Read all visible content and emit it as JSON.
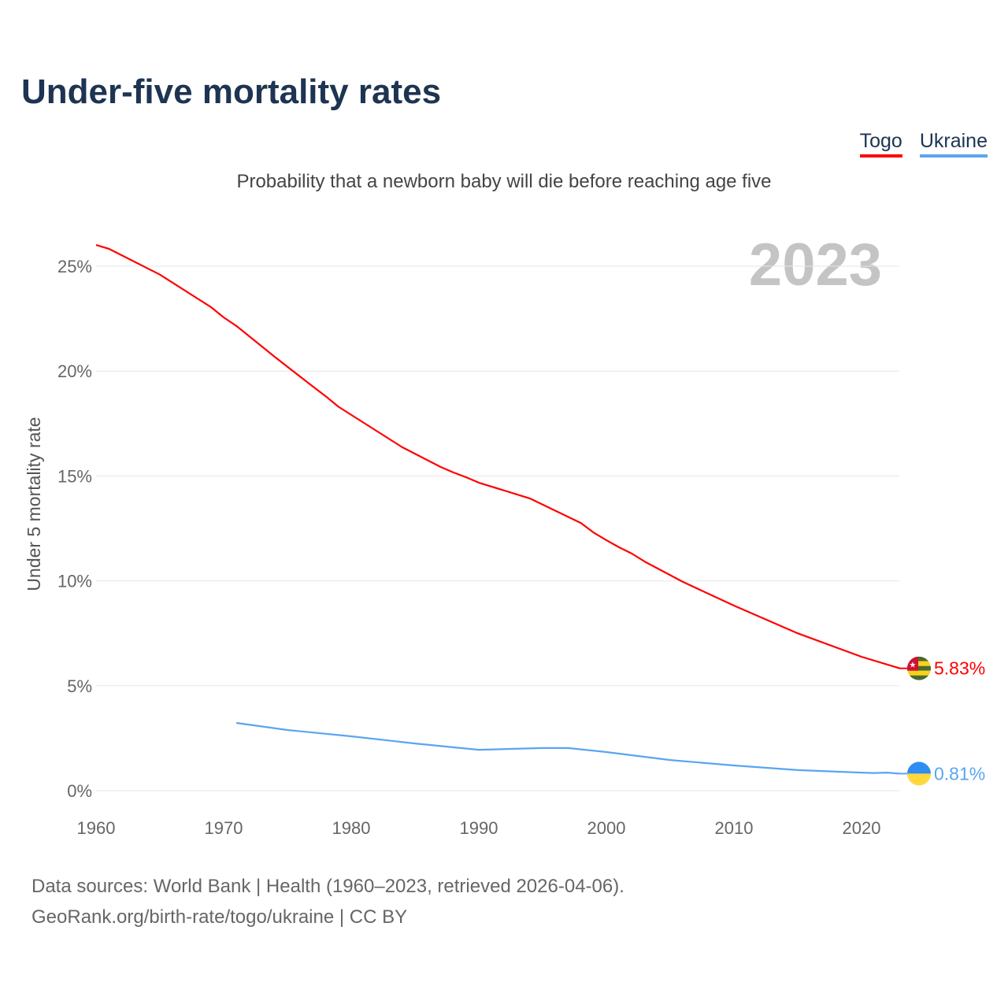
{
  "title": "Under-five mortality rates",
  "subtitle": "Probability that a newborn baby will die before reaching age five",
  "source_line1": "Data sources: World Bank | Health (1960–2023, retrieved 2026-04-06).",
  "source_line2": "GeoRank.org/birth-rate/togo/ukraine | CC BY",
  "chart_data": {
    "type": "line",
    "title": "Under-five mortality rates",
    "ylabel": "Under 5 mortality rate",
    "xlabel": "",
    "year_label": "2023",
    "xlim": [
      1960,
      2023
    ],
    "ylim": [
      0,
      27
    ],
    "xticks": [
      1960,
      1970,
      1980,
      1990,
      2000,
      2010,
      2020
    ],
    "yticks": [
      {
        "v": 0,
        "label": "0%"
      },
      {
        "v": 5,
        "label": "5%"
      },
      {
        "v": 10,
        "label": "10%"
      },
      {
        "v": 15,
        "label": "15%"
      },
      {
        "v": 20,
        "label": "20%"
      },
      {
        "v": 25,
        "label": "25%"
      }
    ],
    "legend_position": "top-right",
    "series": [
      {
        "name": "Togo",
        "color": "#ff0000",
        "end_label": "5.83%",
        "x": [
          1960,
          1961,
          1965,
          1969,
          1970,
          1971,
          1973,
          1974,
          1977,
          1978,
          1979,
          1984,
          1987,
          1988,
          1989,
          1990,
          1994,
          1998,
          1999,
          2000,
          2001,
          2002,
          2003,
          2006,
          2010,
          2015,
          2020,
          2023
        ],
        "y": [
          26.01,
          25.83,
          24.6,
          23.05,
          22.56,
          22.15,
          21.17,
          20.68,
          19.26,
          18.8,
          18.3,
          16.37,
          15.43,
          15.17,
          14.94,
          14.68,
          13.93,
          12.76,
          12.3,
          11.94,
          11.6,
          11.3,
          10.92,
          9.95,
          8.82,
          7.5,
          6.38,
          5.83
        ]
      },
      {
        "name": "Ukraine",
        "color": "#5aa5f0",
        "end_label": "0.81%",
        "x": [
          1971,
          1975,
          1980,
          1985,
          1990,
          1995,
          1997,
          2000,
          2005,
          2010,
          2015,
          2020,
          2021,
          2022,
          2023
        ],
        "y": [
          3.23,
          2.89,
          2.59,
          2.25,
          1.95,
          2.03,
          2.03,
          1.84,
          1.46,
          1.2,
          0.98,
          0.86,
          0.84,
          0.86,
          0.81
        ]
      }
    ]
  }
}
